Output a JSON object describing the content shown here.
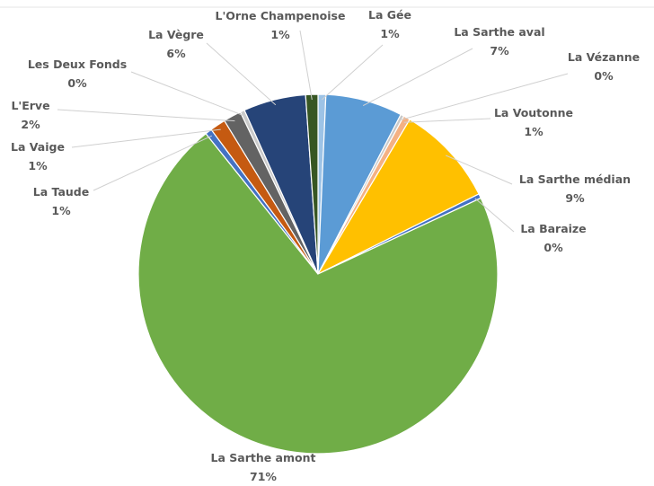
{
  "chart_data": {
    "type": "pie",
    "title": "",
    "slices": [
      {
        "label": "La Gée",
        "pct_label": "1%",
        "value": 0.7,
        "color": "#9DC3E6"
      },
      {
        "label": "La Sarthe aval",
        "pct_label": "7%",
        "value": 6.9,
        "color": "#5B9BD5"
      },
      {
        "label": "La Vézanne",
        "pct_label": "0%",
        "value": 0.3,
        "color": "#C9C9C9"
      },
      {
        "label": "La Voutonne",
        "pct_label": "1%",
        "value": 0.6,
        "color": "#F4B183"
      },
      {
        "label": "La Sarthe médian",
        "pct_label": "9%",
        "value": 9.1,
        "color": "#FFC000"
      },
      {
        "label": "La Baraize",
        "pct_label": "0%",
        "value": 0.4,
        "color": "#4472C4"
      },
      {
        "label": "La Sarthe amont",
        "pct_label": "71%",
        "value": 71.0,
        "color": "#70AD47"
      },
      {
        "label": "La Taude",
        "pct_label": "1%",
        "value": 0.6,
        "color": "#4472C4"
      },
      {
        "label": "La Vaige",
        "pct_label": "1%",
        "value": 1.4,
        "color": "#C55A11"
      },
      {
        "label": "L'Erve",
        "pct_label": "2%",
        "value": 1.6,
        "color": "#636363"
      },
      {
        "label": "Les Deux Fonds",
        "pct_label": "0%",
        "value": 0.4,
        "color": "#C9C9C9"
      },
      {
        "label": "La Vègre",
        "pct_label": "6%",
        "value": 5.6,
        "color": "#264478"
      },
      {
        "label": "L'Orne Champenoise",
        "pct_label": "1%",
        "value": 1.1,
        "color": "#375623"
      }
    ]
  }
}
